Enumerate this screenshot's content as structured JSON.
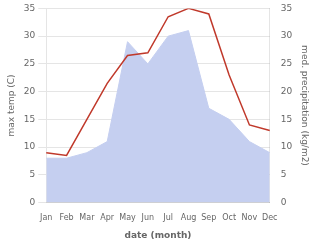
{
  "chart_data": {
    "type": "line",
    "xlabel": "date (month)",
    "ylabel": "max temp (C)",
    "y2label": "med. precipitation (kg/m2)",
    "categories": [
      "Jan",
      "Feb",
      "Mar",
      "Apr",
      "May",
      "Jun",
      "Jul",
      "Aug",
      "Sep",
      "Oct",
      "Nov",
      "Dec"
    ],
    "series": [
      {
        "type": "line",
        "color": "#c0392b",
        "values": [
          9.0,
          8.5,
          15.0,
          21.5,
          26.5,
          27.0,
          33.5,
          35.0,
          34.0,
          23.0,
          14.0,
          13.0
        ]
      },
      {
        "type": "area",
        "color": "#c5cff0",
        "axis": "y2",
        "values": [
          8.0,
          8.0,
          9.0,
          11.0,
          29.0,
          25.0,
          30.0,
          31.0,
          17.0,
          15.0,
          11.0,
          9.0
        ]
      }
    ],
    "ylim": [
      0,
      35
    ],
    "yticks": [
      0,
      5,
      10,
      15,
      20,
      25,
      30,
      35
    ],
    "y2lim": [
      0,
      35
    ],
    "y2ticks": [
      0,
      5,
      10,
      15,
      20,
      25,
      30,
      35
    ],
    "grid": true
  }
}
